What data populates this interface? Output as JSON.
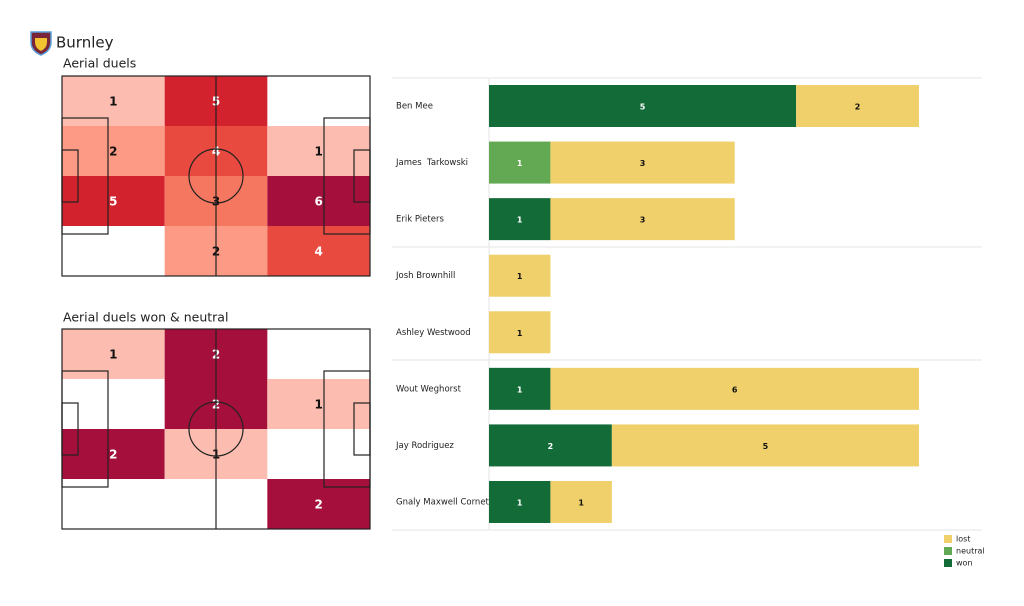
{
  "title": "Burnley",
  "chart_data": [
    {
      "type": "heatmap",
      "title": "Aerial duels",
      "values": [
        [
          1,
          5,
          null
        ],
        [
          2,
          4,
          1
        ],
        [
          5,
          3,
          6
        ],
        [
          null,
          2,
          4
        ]
      ],
      "colors": [
        "#fdbcb0",
        "#fc9a85",
        "#f5775f",
        "#e94a40",
        "#d2222e",
        "#a50f3b"
      ]
    },
    {
      "type": "heatmap",
      "title": "Aerial duels won & neutral",
      "values": [
        [
          1,
          2,
          null
        ],
        [
          null,
          2,
          1
        ],
        [
          2,
          1,
          null
        ],
        [
          null,
          null,
          2
        ]
      ],
      "colors": [
        "#fdbcb0",
        "#fc9a85",
        "#f5775f",
        "#e94a40",
        "#d2222e",
        "#a50f3b"
      ]
    },
    {
      "type": "bar",
      "orientation": "horizontal",
      "stacked": true,
      "categories": [
        "Ben Mee",
        "James  Tarkowski",
        "Erik Pieters",
        "Josh Brownhill",
        "Ashley Westwood",
        "Wout Weghorst",
        "Jay Rodriguez",
        "Gnaly Maxwell Cornet"
      ],
      "series": [
        {
          "name": "won",
          "color": "#136b38",
          "values": [
            5,
            null,
            1,
            null,
            null,
            1,
            2,
            1
          ]
        },
        {
          "name": "neutral",
          "color": "#63a852",
          "values": [
            null,
            1,
            null,
            null,
            null,
            null,
            null,
            null
          ]
        },
        {
          "name": "lost",
          "color": "#f0d06b",
          "values": [
            2,
            3,
            3,
            1,
            1,
            6,
            5,
            1
          ]
        }
      ],
      "legend": "lower right"
    }
  ]
}
